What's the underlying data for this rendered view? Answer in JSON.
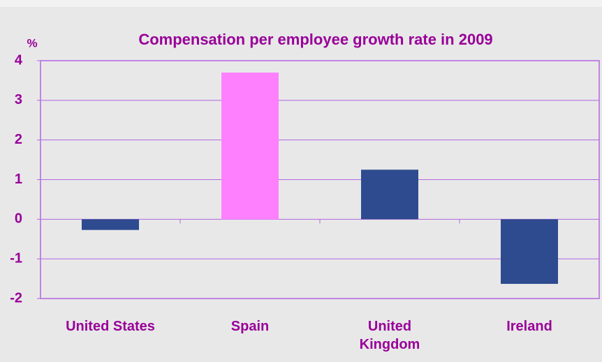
{
  "chart_data": {
    "type": "bar",
    "title": "Compensation per employee growth rate in 2009",
    "y_axis_label": "%",
    "categories": [
      "United States",
      "Spain",
      "United Kingdom",
      "Ireland"
    ],
    "values": [
      -0.27,
      3.7,
      1.25,
      -1.63
    ],
    "colors": [
      "#2e4b8f",
      "#ff80ff",
      "#2e4b8f",
      "#2e4b8f"
    ],
    "ylim": [
      -2,
      4
    ],
    "yticks": [
      -2,
      -1,
      0,
      1,
      2,
      3,
      4
    ],
    "grid": true
  }
}
